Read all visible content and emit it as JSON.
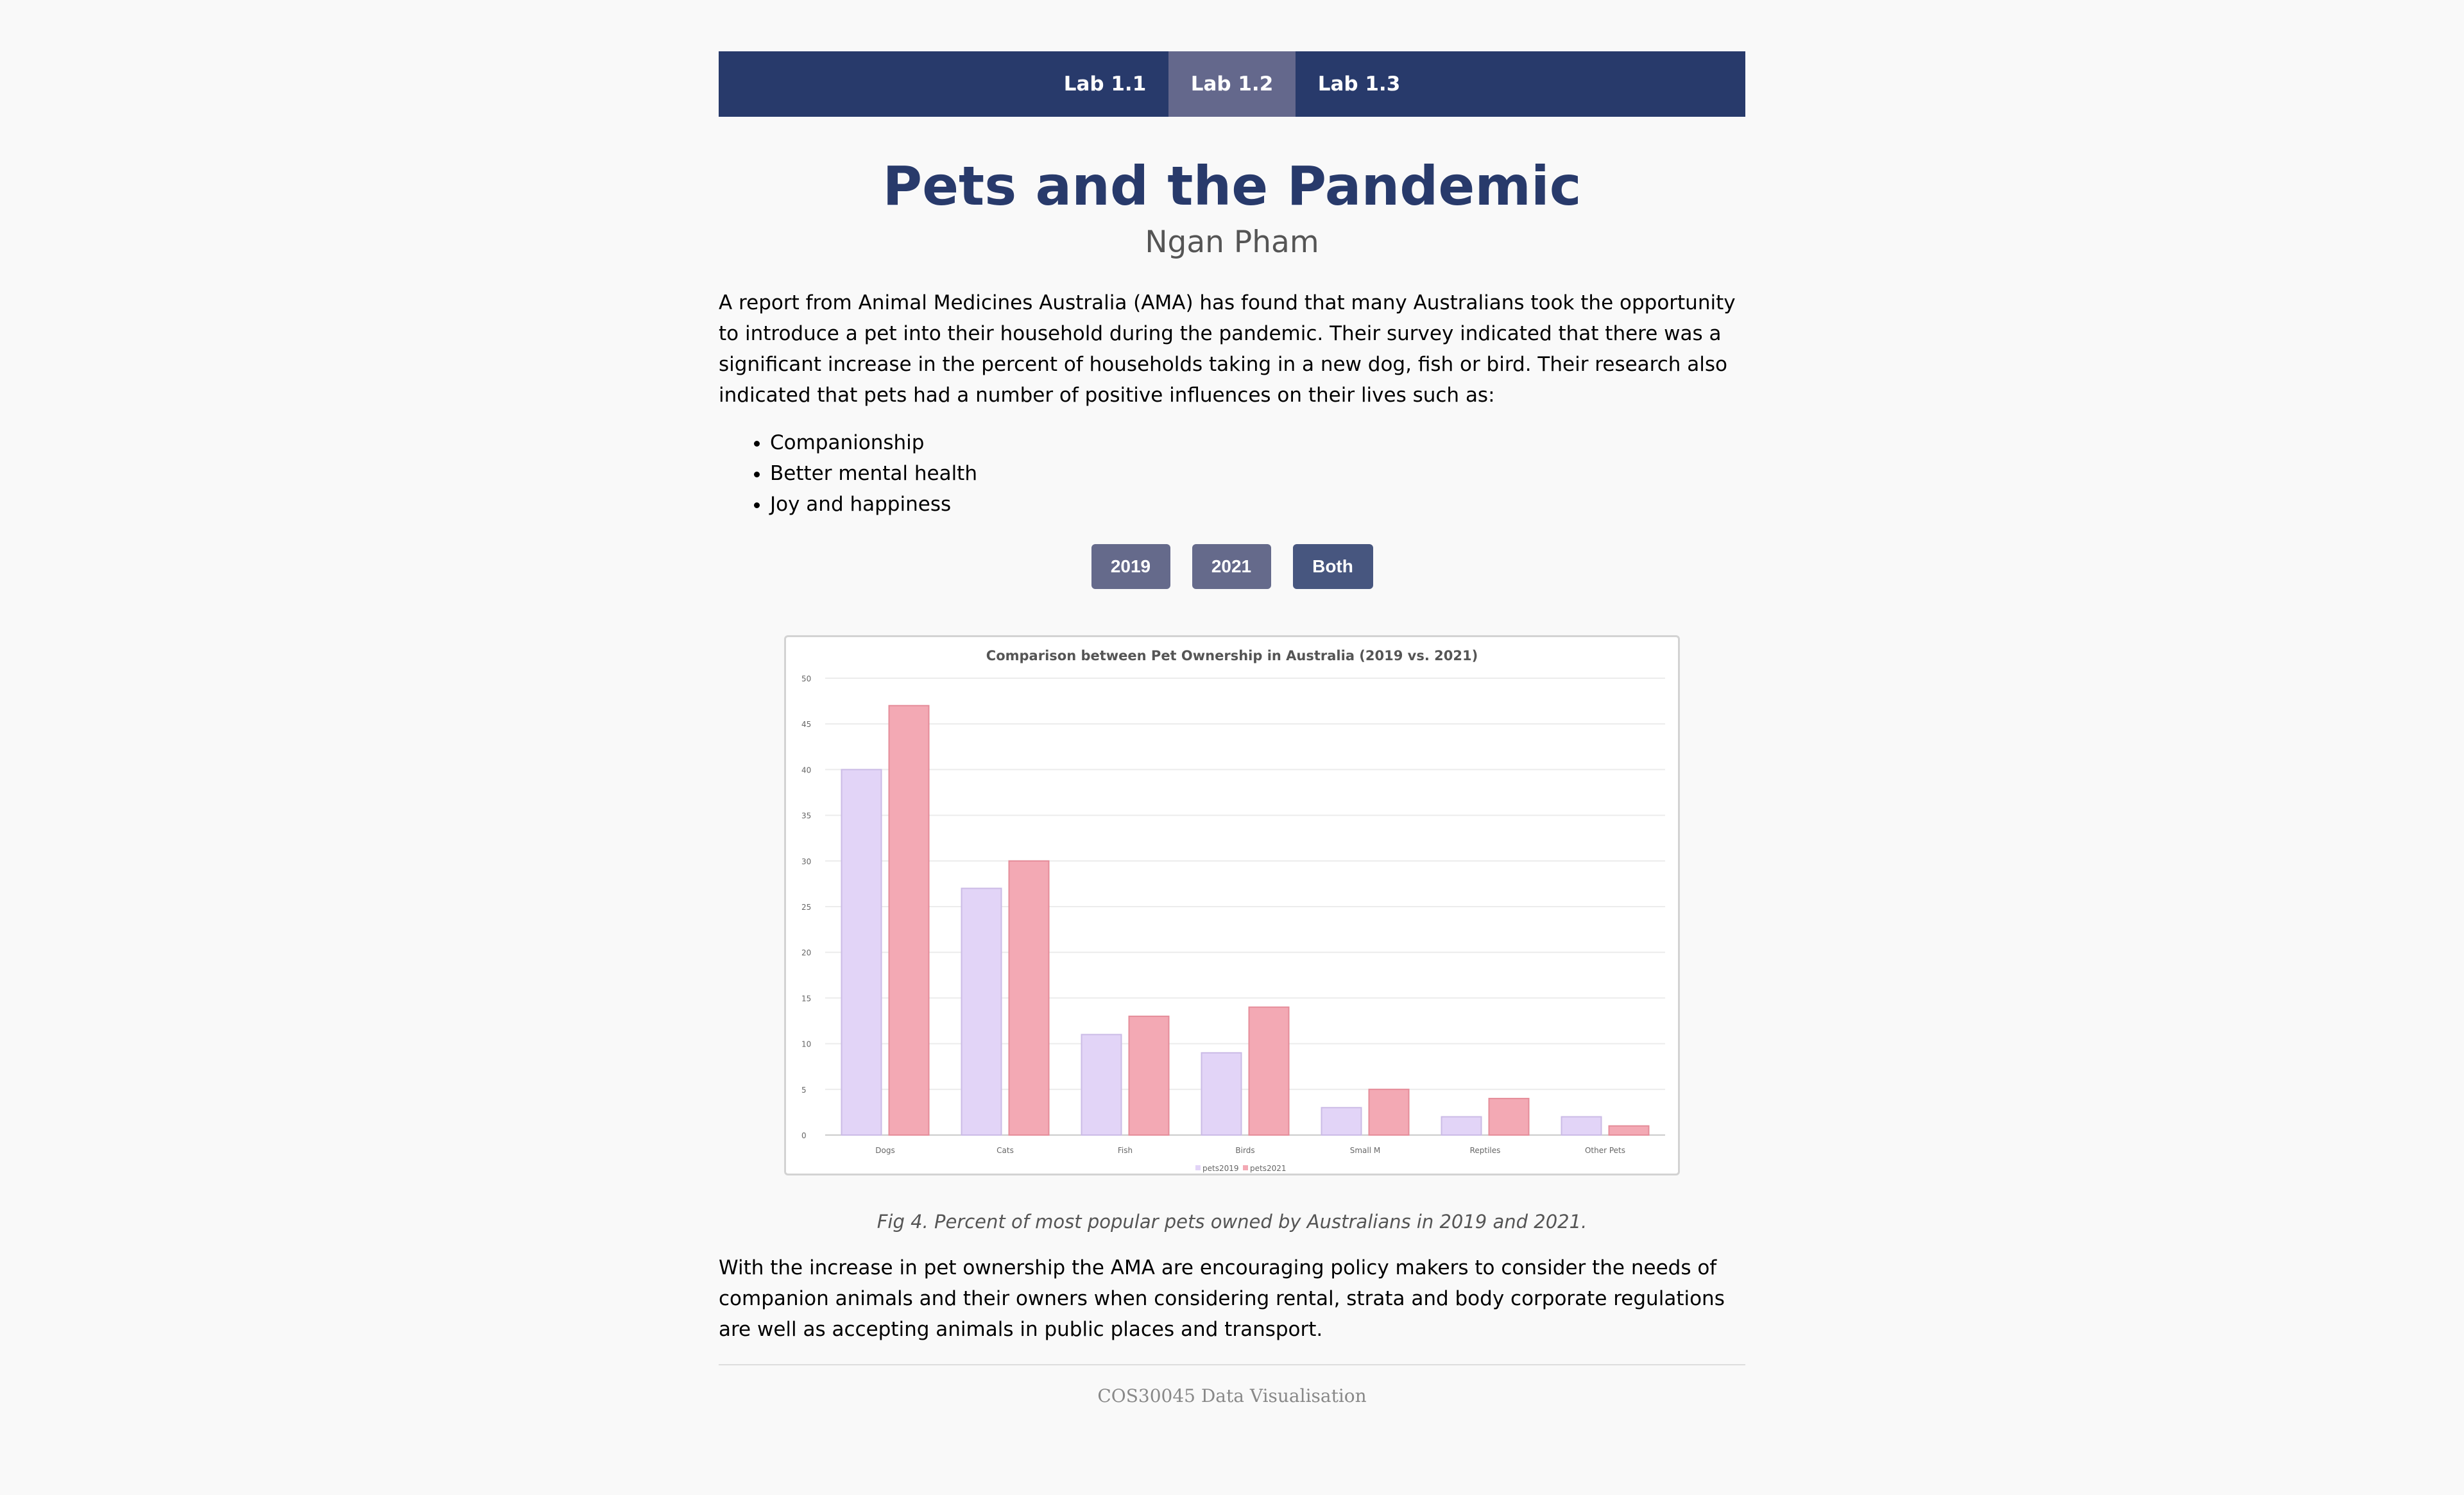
{
  "nav": {
    "tabs": [
      {
        "label": "Lab 1.1"
      },
      {
        "label": "Lab 1.2"
      },
      {
        "label": "Lab 1.3"
      }
    ],
    "active_index": 1
  },
  "header": {
    "title": "Pets and the Pandemic",
    "author": "Ngan Pham"
  },
  "intro": "A report from Animal Medicines Australia (AMA) has found that many Australians took the opportunity to introduce a pet into their household during the pandemic. Their survey indicated that there was a significant increase in the percent of households taking in a new dog, fish or bird. Their research also indicated that pets had a number of positive influences on their lives such as:",
  "bullets": [
    "Companionship",
    "Better mental health",
    "Joy and happiness"
  ],
  "buttons": {
    "y2019": "2019",
    "y2021": "2021",
    "both": "Both"
  },
  "colors": {
    "nav": "#283a6b",
    "nav_active": "#64688c",
    "series2019": "#e2d4f7",
    "series2021": "#f3a9b4"
  },
  "chart_data": {
    "type": "bar",
    "title": "Comparison between Pet Ownership in Australia (2019 vs. 2021)",
    "categories": [
      "Dogs",
      "Cats",
      "Fish",
      "Birds",
      "Small M",
      "Reptiles",
      "Other Pets"
    ],
    "series": [
      {
        "name": "pets2019",
        "values": [
          40,
          27,
          11,
          9,
          3,
          2,
          2
        ],
        "color": "#e2d4f7"
      },
      {
        "name": "pets2021",
        "values": [
          47,
          30,
          13,
          14,
          5,
          4,
          1
        ],
        "color": "#f3a9b4"
      }
    ],
    "ylim": [
      0,
      50
    ],
    "yticks": [
      0,
      5,
      10,
      15,
      20,
      25,
      30,
      35,
      40,
      45,
      50
    ],
    "grid": true,
    "legend": "bottom"
  },
  "caption": "Fig 4. Percent of most popular pets owned by Australians in 2019 and 2021.",
  "outro": "With the increase in pet ownership the AMA are encouraging policy makers to consider the needs of companion animals and their owners when considering rental, strata and body corporate regulations are well as accepting animals in public places and transport.",
  "footer": "COS30045 Data Visualisation"
}
